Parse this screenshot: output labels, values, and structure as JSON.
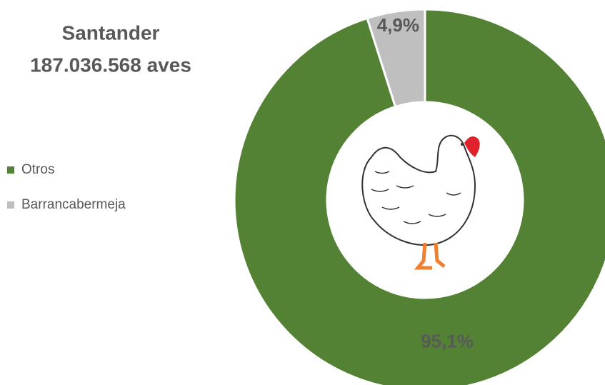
{
  "chart_data": {
    "type": "donut",
    "title": "Santander",
    "subtitle": "187.036.568 aves",
    "categories": [
      "Otros",
      "Barrancabermeja"
    ],
    "values": [
      95.1,
      4.9
    ],
    "value_labels": [
      "95,1%",
      "4,9%"
    ],
    "colors": [
      "#548235",
      "#bfbfbf"
    ],
    "legend": "left"
  }
}
